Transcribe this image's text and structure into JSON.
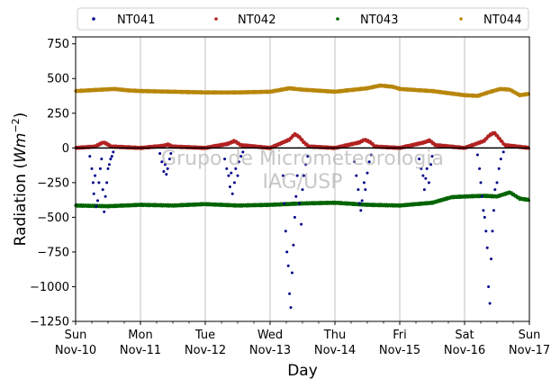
{
  "chart_data": {
    "type": "scatter",
    "title": "",
    "xlabel": "Day",
    "ylabel": "Radiation (Wm⁻²)",
    "ylabel_main": "Radiation (",
    "ylabel_unit": "Wm",
    "ylabel_exp": "−2",
    "ylabel_close": ")",
    "watermark": [
      "Grupo de Micrometeorologia",
      "IAG/USP"
    ],
    "xlim": [
      0,
      7
    ],
    "ylim": [
      -1250,
      800
    ],
    "yticks": [
      800,
      750,
      500,
      250,
      0,
      -250,
      -500,
      -750,
      -1000,
      -1250
    ],
    "ytick_labels": [
      "",
      "750",
      "500",
      "250",
      "0",
      "−250",
      "−500",
      "−750",
      "−1000",
      "−1250"
    ],
    "xticks": [
      {
        "x": 0,
        "day": "Sun",
        "date": "Nov-10"
      },
      {
        "x": 1,
        "day": "Mon",
        "date": "Nov-11"
      },
      {
        "x": 2,
        "day": "Tue",
        "date": "Nov-12"
      },
      {
        "x": 3,
        "day": "Wed",
        "date": "Nov-13"
      },
      {
        "x": 4,
        "day": "Thu",
        "date": "Nov-14"
      },
      {
        "x": 5,
        "day": "Fri",
        "date": "Nov-15"
      },
      {
        "x": 6,
        "day": "Sat",
        "date": "Nov-16"
      },
      {
        "x": 7,
        "day": "Sun",
        "date": "Nov-17"
      }
    ],
    "grid_x": true,
    "legend_position": "top",
    "legend_columns": 4,
    "zero_line": true,
    "series": [
      {
        "name": "NT041",
        "color": "#00008b",
        "points": [
          [
            0.22,
            -60
          ],
          [
            0.25,
            -150
          ],
          [
            0.27,
            -250
          ],
          [
            0.28,
            -330
          ],
          [
            0.3,
            -200
          ],
          [
            0.32,
            -420
          ],
          [
            0.34,
            -380
          ],
          [
            0.36,
            -250
          ],
          [
            0.38,
            -150
          ],
          [
            0.4,
            -80
          ],
          [
            0.42,
            -300
          ],
          [
            0.44,
            -460
          ],
          [
            0.46,
            -350
          ],
          [
            0.48,
            -250
          ],
          [
            0.5,
            -150
          ],
          [
            0.52,
            -120
          ],
          [
            0.54,
            -80
          ],
          [
            0.56,
            -60
          ],
          [
            0.58,
            -30
          ],
          [
            1.3,
            -40
          ],
          [
            1.33,
            -100
          ],
          [
            1.36,
            -170
          ],
          [
            1.38,
            -120
          ],
          [
            1.4,
            -190
          ],
          [
            1.42,
            -150
          ],
          [
            1.45,
            -80
          ],
          [
            1.47,
            -40
          ],
          [
            2.3,
            -80
          ],
          [
            2.33,
            -150
          ],
          [
            2.36,
            -200
          ],
          [
            2.38,
            -280
          ],
          [
            2.4,
            -180
          ],
          [
            2.42,
            -330
          ],
          [
            2.45,
            -250
          ],
          [
            2.47,
            -150
          ],
          [
            2.5,
            -200
          ],
          [
            2.52,
            -100
          ],
          [
            2.55,
            -60
          ],
          [
            2.58,
            -30
          ],
          [
            3.2,
            -200
          ],
          [
            3.22,
            -400
          ],
          [
            3.24,
            -600
          ],
          [
            3.26,
            -750
          ],
          [
            3.28,
            -850
          ],
          [
            3.3,
            -1050
          ],
          [
            3.32,
            -1150
          ],
          [
            3.34,
            -900
          ],
          [
            3.36,
            -700
          ],
          [
            3.38,
            -500
          ],
          [
            3.4,
            -350
          ],
          [
            3.42,
            -200
          ],
          [
            3.45,
            -400
          ],
          [
            3.48,
            -550
          ],
          [
            3.5,
            -300
          ],
          [
            3.52,
            -200
          ],
          [
            3.55,
            -120
          ],
          [
            3.58,
            -60
          ],
          [
            4.3,
            -100
          ],
          [
            4.33,
            -200
          ],
          [
            4.36,
            -300
          ],
          [
            4.38,
            -400
          ],
          [
            4.4,
            -450
          ],
          [
            4.42,
            -380
          ],
          [
            4.45,
            -250
          ],
          [
            4.47,
            -300
          ],
          [
            4.5,
            -180
          ],
          [
            4.53,
            -100
          ],
          [
            4.56,
            -50
          ],
          [
            5.3,
            -80
          ],
          [
            5.33,
            -150
          ],
          [
            5.36,
            -200
          ],
          [
            5.38,
            -300
          ],
          [
            5.4,
            -220
          ],
          [
            5.42,
            -150
          ],
          [
            5.45,
            -250
          ],
          [
            5.48,
            -120
          ],
          [
            5.5,
            -60
          ],
          [
            6.2,
            -50
          ],
          [
            6.23,
            -150
          ],
          [
            6.25,
            -250
          ],
          [
            6.27,
            -350
          ],
          [
            6.29,
            -450
          ],
          [
            6.31,
            -500
          ],
          [
            6.33,
            -600
          ],
          [
            6.35,
            -720
          ],
          [
            6.37,
            -1000
          ],
          [
            6.39,
            -1120
          ],
          [
            6.41,
            -800
          ],
          [
            6.43,
            -600
          ],
          [
            6.45,
            -450
          ],
          [
            6.47,
            -300
          ],
          [
            6.5,
            -250
          ],
          [
            6.53,
            -150
          ],
          [
            6.56,
            -80
          ],
          [
            6.6,
            -30
          ]
        ]
      },
      {
        "name": "NT042",
        "color": "#b22222",
        "points": [
          [
            0,
            0
          ],
          [
            0.3,
            10
          ],
          [
            0.38,
            30
          ],
          [
            0.43,
            40
          ],
          [
            0.48,
            30
          ],
          [
            0.55,
            10
          ],
          [
            1,
            0
          ],
          [
            1.35,
            15
          ],
          [
            1.42,
            25
          ],
          [
            1.5,
            10
          ],
          [
            2,
            0
          ],
          [
            2.35,
            30
          ],
          [
            2.45,
            50
          ],
          [
            2.55,
            20
          ],
          [
            3,
            0
          ],
          [
            3.3,
            60
          ],
          [
            3.38,
            100
          ],
          [
            3.45,
            80
          ],
          [
            3.52,
            40
          ],
          [
            3.6,
            10
          ],
          [
            4,
            0
          ],
          [
            4.38,
            40
          ],
          [
            4.46,
            60
          ],
          [
            4.55,
            40
          ],
          [
            4.62,
            10
          ],
          [
            5,
            0
          ],
          [
            5.38,
            40
          ],
          [
            5.46,
            55
          ],
          [
            5.55,
            20
          ],
          [
            6,
            0
          ],
          [
            6.3,
            50
          ],
          [
            6.38,
            90
          ],
          [
            6.46,
            110
          ],
          [
            6.55,
            60
          ],
          [
            6.62,
            20
          ],
          [
            7,
            0
          ]
        ]
      },
      {
        "name": "NT043",
        "color": "#006400",
        "points": [
          [
            0,
            -415
          ],
          [
            0.5,
            -420
          ],
          [
            1,
            -410
          ],
          [
            1.5,
            -415
          ],
          [
            2,
            -405
          ],
          [
            2.5,
            -415
          ],
          [
            3,
            -410
          ],
          [
            3.5,
            -400
          ],
          [
            4,
            -395
          ],
          [
            4.5,
            -410
          ],
          [
            5,
            -415
          ],
          [
            5.5,
            -395
          ],
          [
            5.8,
            -355
          ],
          [
            6,
            -350
          ],
          [
            6.3,
            -345
          ],
          [
            6.5,
            -350
          ],
          [
            6.7,
            -320
          ],
          [
            6.85,
            -365
          ],
          [
            7,
            -375
          ]
        ]
      },
      {
        "name": "NT044",
        "color": "#b8860b",
        "points": [
          [
            0,
            410
          ],
          [
            0.2,
            415
          ],
          [
            0.4,
            420
          ],
          [
            0.6,
            425
          ],
          [
            0.8,
            415
          ],
          [
            1,
            410
          ],
          [
            1.5,
            405
          ],
          [
            2,
            400
          ],
          [
            2.5,
            400
          ],
          [
            3,
            405
          ],
          [
            3.3,
            430
          ],
          [
            3.5,
            420
          ],
          [
            4,
            405
          ],
          [
            4.5,
            430
          ],
          [
            4.7,
            450
          ],
          [
            4.9,
            440
          ],
          [
            5,
            425
          ],
          [
            5.5,
            410
          ],
          [
            6,
            380
          ],
          [
            6.2,
            375
          ],
          [
            6.4,
            405
          ],
          [
            6.55,
            425
          ],
          [
            6.7,
            420
          ],
          [
            6.85,
            380
          ],
          [
            7,
            390
          ]
        ]
      }
    ]
  }
}
